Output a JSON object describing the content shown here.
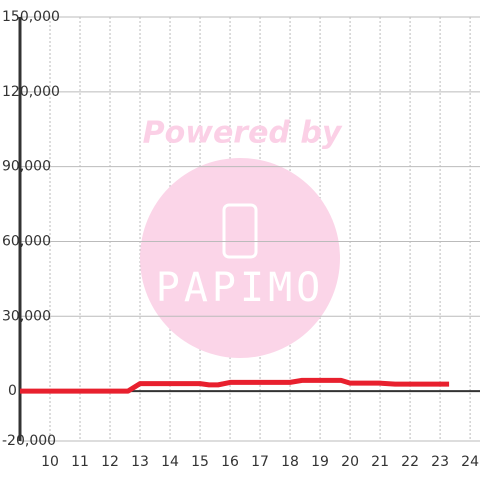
{
  "chart_data": {
    "type": "line",
    "watermark": {
      "text": "Powered by",
      "logo": "PAPIMO"
    },
    "x": [
      9,
      12.6,
      13,
      15,
      15.3,
      15.6,
      16,
      18,
      18.4,
      19.7,
      20,
      21,
      21.5,
      23.3
    ],
    "series": [
      {
        "color": "#e8202e",
        "values": [
          0,
          0,
          3000,
          3000,
          2500,
          2500,
          3500,
          3500,
          4300,
          4300,
          3200,
          3200,
          2800,
          2800
        ]
      }
    ],
    "xlim": [
      9,
      24.33
    ],
    "xticks": [
      10,
      11,
      12,
      13,
      14,
      15,
      16,
      17,
      18,
      19,
      20,
      21,
      22,
      23,
      24
    ],
    "ylim": [
      -20000,
      150000
    ],
    "yticks": [
      {
        "value": -20000,
        "label": "-20,000"
      },
      0,
      {
        "value": 30000,
        "label": "30,000"
      },
      {
        "value": 60000,
        "label": "60,000"
      },
      {
        "value": 90000,
        "label": "90,000"
      },
      {
        "value": 120000,
        "label": "120,000"
      },
      {
        "value": 150000,
        "label": "150,000"
      }
    ],
    "grid": true
  }
}
